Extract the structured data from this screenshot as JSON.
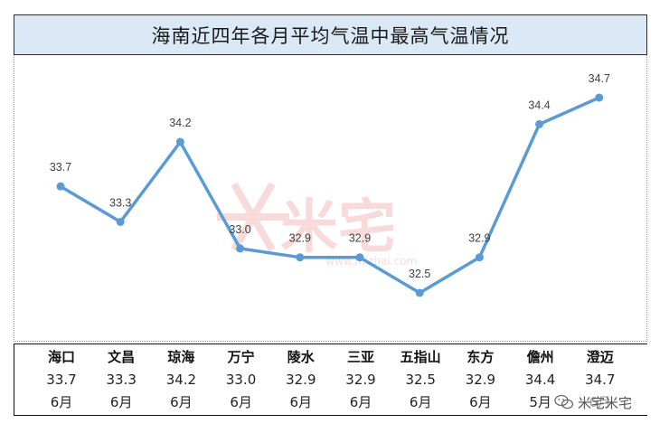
{
  "title": "海南近四年各月平均气温中最高气温情况",
  "chart_data": {
    "type": "line",
    "categories": [
      "海口",
      "文昌",
      "琼海",
      "万宁",
      "陵水",
      "三亚",
      "五指山",
      "东方",
      "儋州",
      "澄迈"
    ],
    "values": [
      33.7,
      33.3,
      34.2,
      33.0,
      32.9,
      32.9,
      32.5,
      32.9,
      34.4,
      34.7
    ],
    "value_labels": [
      "33.7",
      "33.3",
      "34.2",
      "33.0",
      "32.9",
      "32.9",
      "32.5",
      "32.9",
      "34.4",
      "34.7"
    ],
    "months": [
      "6月",
      "6月",
      "6月",
      "6月",
      "6月",
      "6月",
      "6月",
      "6月",
      "5月",
      "6月"
    ],
    "line_color": "#5b9bd5",
    "grid": false,
    "legend": "none"
  },
  "watermark": {
    "brand": "米宅",
    "url": "www.mizhai.com"
  },
  "footer": {
    "label": "米宅米宅"
  }
}
